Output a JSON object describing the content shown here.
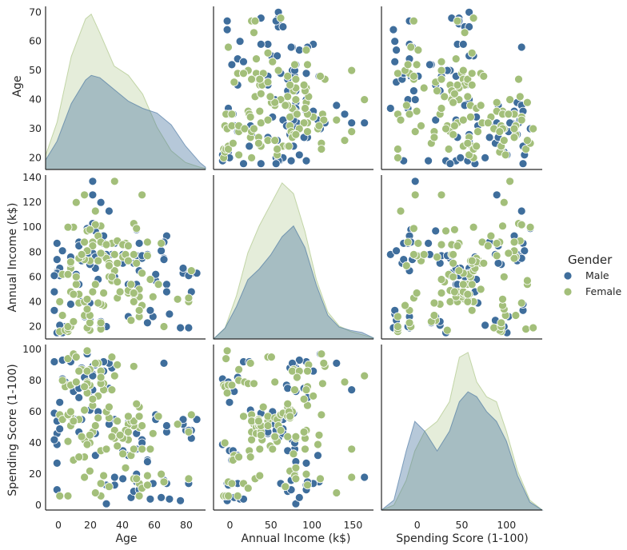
{
  "chart_data": {
    "type": "pairplot",
    "variables": [
      {
        "name": "Age",
        "label": "Age",
        "lim": [
          16,
          72
        ],
        "ticks": [
          20,
          30,
          40,
          50,
          60,
          70
        ],
        "xlim": [
          -8,
          92
        ],
        "xticks": [
          0,
          20,
          40,
          60,
          80
        ]
      },
      {
        "name": "Annual Income (k$)",
        "label": "Annual Income (k$)",
        "lim": [
          10,
          142
        ],
        "ticks": [
          20,
          40,
          60,
          80,
          100,
          120,
          140
        ],
        "xlim": [
          -20,
          175
        ],
        "xticks": [
          0,
          50,
          100,
          150
        ]
      },
      {
        "name": "Spending Score (1-100)",
        "label": "Spending Score (1-100)",
        "lim": [
          -3,
          103
        ],
        "ticks": [
          0,
          20,
          40,
          60,
          80,
          100
        ],
        "xlim": [
          -40,
          140
        ],
        "xticks": [
          0,
          50,
          100
        ]
      }
    ],
    "legend": {
      "title": "Gender",
      "placement": "right",
      "entries": [
        "Male",
        "Female"
      ]
    },
    "colors": {
      "Male": "#3f6e9c",
      "Female": "#a3bf7a",
      "axis": "#262626"
    },
    "grid": false,
    "series": [
      {
        "name": "Male",
        "points": [
          [
            19,
            15,
            39
          ],
          [
            21,
            15,
            81
          ],
          [
            64,
            19,
            3
          ],
          [
            67,
            19,
            14
          ],
          [
            37,
            20,
            13
          ],
          [
            22,
            20,
            79
          ],
          [
            35,
            21,
            35
          ],
          [
            20,
            21,
            66
          ],
          [
            52,
            23,
            29
          ],
          [
            35,
            24,
            35
          ],
          [
            25,
            24,
            73
          ],
          [
            46,
            25,
            5
          ],
          [
            31,
            25,
            73
          ],
          [
            54,
            28,
            14
          ],
          [
            29,
            28,
            82
          ],
          [
            45,
            28,
            32
          ],
          [
            60,
            30,
            4
          ],
          [
            53,
            33,
            4
          ],
          [
            18,
            33,
            92
          ],
          [
            59,
            54,
            47
          ],
          [
            24,
            38,
            92
          ],
          [
            19,
            64,
            46
          ],
          [
            31,
            39,
            61
          ],
          [
            18,
            48,
            59
          ],
          [
            20,
            61,
            49
          ],
          [
            66,
            63,
            48
          ],
          [
            49,
            65,
            14
          ],
          [
            26,
            62,
            55
          ],
          [
            65,
            63,
            52
          ],
          [
            48,
            77,
            36
          ],
          [
            50,
            75,
            42
          ],
          [
            68,
            63,
            43
          ],
          [
            20,
            67,
            49
          ],
          [
            52,
            78,
            28
          ],
          [
            45,
            54,
            53
          ],
          [
            59,
            48,
            51
          ],
          [
            40,
            60,
            55
          ],
          [
            68,
            48,
            48
          ],
          [
            48,
            54,
            46
          ],
          [
            28,
            40,
            55
          ],
          [
            19,
            63,
            54
          ],
          [
            38,
            60,
            52
          ],
          [
            27,
            54,
            47
          ],
          [
            33,
            67,
            46
          ],
          [
            39,
            78,
            88
          ],
          [
            43,
            71,
            35
          ],
          [
            48,
            77,
            20
          ],
          [
            40,
            87,
            13
          ],
          [
            32,
            126,
            74
          ],
          [
            55,
            57,
            58
          ],
          [
            38,
            113,
            91
          ],
          [
            47,
            71,
            9
          ],
          [
            27,
            88,
            69
          ],
          [
            36,
            87,
            92
          ],
          [
            32,
            79,
            84
          ],
          [
            33,
            97,
            32
          ],
          [
            40,
            137,
            18
          ],
          [
            32,
            103,
            89
          ],
          [
            48,
            98,
            15
          ],
          [
            35,
            120,
            79
          ],
          [
            36,
            93,
            86
          ],
          [
            19,
            74,
            10
          ],
          [
            30,
            99,
            97
          ],
          [
            59,
            93,
            14
          ],
          [
            32,
            137,
            83
          ],
          [
            21,
            81,
            93
          ],
          [
            43,
            78,
            17
          ],
          [
            37,
            78,
            1
          ],
          [
            33,
            76,
            90
          ],
          [
            58,
            88,
            15
          ],
          [
            27,
            85,
            75
          ],
          [
            30,
            78,
            73
          ],
          [
            49,
            87,
            10
          ],
          [
            24,
            76,
            59
          ],
          [
            28,
            73,
            88
          ],
          [
            31,
            70,
            77
          ],
          [
            18,
            61,
            42
          ],
          [
            57,
            81,
            5
          ],
          [
            34,
            58,
            60
          ],
          [
            38,
            71,
            75
          ],
          [
            19,
            87,
            27
          ],
          [
            58,
            75,
            91
          ],
          [
            65,
            67,
            55
          ],
          [
            70,
            63,
            55
          ],
          [
            50,
            77,
            40
          ],
          [
            67,
            61,
            48
          ],
          [
            55,
            62,
            55
          ],
          [
            58,
            74,
            16
          ]
        ]
      },
      {
        "name": "Female",
        "points": [
          [
            20,
            16,
            6
          ],
          [
            23,
            16,
            77
          ],
          [
            31,
            17,
            40
          ],
          [
            22,
            17,
            76
          ],
          [
            35,
            18,
            6
          ],
          [
            23,
            18,
            94
          ],
          [
            30,
            19,
            72
          ],
          [
            30,
            19,
            99
          ],
          [
            58,
            20,
            15
          ],
          [
            24,
            20,
            77
          ],
          [
            35,
            23,
            14
          ],
          [
            46,
            25,
            32
          ],
          [
            23,
            20,
            6
          ],
          [
            31,
            23,
            77
          ],
          [
            25,
            24,
            29
          ],
          [
            49,
            28,
            6
          ],
          [
            21,
            29,
            80
          ],
          [
            29,
            29,
            31
          ],
          [
            31,
            29,
            87
          ],
          [
            49,
            33,
            14
          ],
          [
            30,
            34,
            79
          ],
          [
            50,
            37,
            11
          ],
          [
            36,
            37,
            78
          ],
          [
            35,
            38,
            35
          ],
          [
            27,
            39,
            31
          ],
          [
            34,
            39,
            91
          ],
          [
            29,
            40,
            42
          ],
          [
            67,
            40,
            47
          ],
          [
            20,
            40,
            58
          ],
          [
            63,
            42,
            52
          ],
          [
            67,
            43,
            17
          ],
          [
            41,
            43,
            54
          ],
          [
            49,
            44,
            50
          ],
          [
            54,
            44,
            46
          ],
          [
            47,
            46,
            51
          ],
          [
            27,
            46,
            55
          ],
          [
            45,
            47,
            52
          ],
          [
            32,
            48,
            47
          ],
          [
            24,
            48,
            51
          ],
          [
            45,
            49,
            42
          ],
          [
            46,
            54,
            54
          ],
          [
            56,
            54,
            57
          ],
          [
            49,
            50,
            63
          ],
          [
            47,
            40,
            54
          ],
          [
            38,
            60,
            56
          ],
          [
            21,
            62,
            55
          ],
          [
            50,
            63,
            51
          ],
          [
            68,
            65,
            58
          ],
          [
            24,
            67,
            59
          ],
          [
            41,
            71,
            44
          ],
          [
            31,
            73,
            22
          ],
          [
            29,
            74,
            61
          ],
          [
            43,
            76,
            33
          ],
          [
            28,
            76,
            87
          ],
          [
            36,
            77,
            74
          ],
          [
            52,
            77,
            19
          ],
          [
            47,
            78,
            17
          ],
          [
            40,
            78,
            43
          ],
          [
            24,
            71,
            57
          ],
          [
            30,
            42,
            78
          ],
          [
            34,
            73,
            56
          ],
          [
            37,
            75,
            60
          ],
          [
            44,
            87,
            48
          ],
          [
            57,
            87,
            20
          ],
          [
            29,
            88,
            76
          ],
          [
            25,
            100,
            97
          ],
          [
            52,
            88,
            13
          ],
          [
            39,
            87,
            74
          ],
          [
            32,
            88,
            64
          ],
          [
            34,
            93,
            70
          ],
          [
            30,
            97,
            39
          ],
          [
            35,
            101,
            78
          ],
          [
            44,
            78,
            24
          ],
          [
            32,
            85,
            68
          ],
          [
            41,
            89,
            90
          ],
          [
            47,
            103,
            89
          ],
          [
            29,
            126,
            18
          ],
          [
            40,
            137,
            83
          ],
          [
            23,
            100,
            58
          ],
          [
            49,
            33,
            57
          ],
          [
            50,
            126,
            36
          ],
          [
            27,
            75,
            86
          ],
          [
            38,
            71,
            63
          ],
          [
            33,
            113,
            8
          ],
          [
            24,
            72,
            60
          ],
          [
            43,
            86,
            43
          ],
          [
            23,
            62,
            41
          ],
          [
            35,
            88,
            86
          ],
          [
            48,
            99,
            17
          ],
          [
            33,
            102,
            91
          ],
          [
            36,
            47,
            19
          ],
          [
            26,
            54,
            95
          ],
          [
            26,
            120,
            79
          ],
          [
            47,
            47,
            36
          ],
          [
            31,
            98,
            45
          ],
          [
            37,
            86,
            36
          ],
          [
            39,
            57,
            95
          ],
          [
            30,
            81,
            86
          ],
          [
            40,
            65,
            48
          ],
          [
            38,
            69,
            12
          ],
          [
            26,
            60,
            79
          ],
          [
            35,
            79,
            82
          ],
          [
            25,
            46,
            54
          ],
          [
            42,
            48,
            45
          ],
          [
            39,
            60,
            44
          ],
          [
            28,
            78,
            44
          ],
          [
            33,
            54,
            51
          ],
          [
            41,
            56,
            38
          ],
          [
            53,
            58,
            36
          ],
          [
            45,
            73,
            57
          ],
          [
            45,
            85,
            47
          ],
          [
            48,
            71,
            65
          ]
        ]
      }
    ],
    "kde": {
      "Age": {
        "x": [
          16,
          20,
          25,
          30,
          32,
          35,
          40,
          45,
          50,
          55,
          60,
          65,
          70,
          72
        ],
        "Male": [
          0.004,
          0.012,
          0.028,
          0.038,
          0.04,
          0.039,
          0.034,
          0.029,
          0.026,
          0.024,
          0.019,
          0.01,
          0.003,
          0.001
        ],
        "Female": [
          0.006,
          0.02,
          0.048,
          0.064,
          0.066,
          0.058,
          0.044,
          0.04,
          0.032,
          0.018,
          0.008,
          0.003,
          0.001,
          0.0005
        ]
      },
      "Annual Income (k$)": {
        "x": [
          5,
          15,
          25,
          35,
          45,
          55,
          65,
          75,
          85,
          95,
          105,
          115,
          125,
          135,
          145
        ],
        "Male": [
          0.0,
          0.001,
          0.003,
          0.0055,
          0.0065,
          0.0078,
          0.0095,
          0.0105,
          0.0085,
          0.005,
          0.0022,
          0.0011,
          0.0008,
          0.0006,
          0.0001
        ],
        "Female": [
          0.0,
          0.001,
          0.004,
          0.008,
          0.0105,
          0.0125,
          0.0145,
          0.0135,
          0.01,
          0.0055,
          0.0025,
          0.0012,
          0.0007,
          0.0004,
          0.0001
        ]
      },
      "Spending Score (1-100)": {
        "x": [
          -15,
          -5,
          5,
          12,
          20,
          30,
          40,
          48,
          55,
          62,
          70,
          78,
          86,
          95,
          105,
          115
        ],
        "Male": [
          0.0,
          0.001,
          0.006,
          0.009,
          0.008,
          0.006,
          0.008,
          0.011,
          0.012,
          0.0115,
          0.01,
          0.009,
          0.007,
          0.0035,
          0.0008,
          0.0
        ],
        "Female": [
          0.0,
          0.0005,
          0.003,
          0.006,
          0.008,
          0.009,
          0.011,
          0.0155,
          0.016,
          0.013,
          0.0115,
          0.011,
          0.008,
          0.004,
          0.001,
          0.0
        ]
      }
    }
  }
}
